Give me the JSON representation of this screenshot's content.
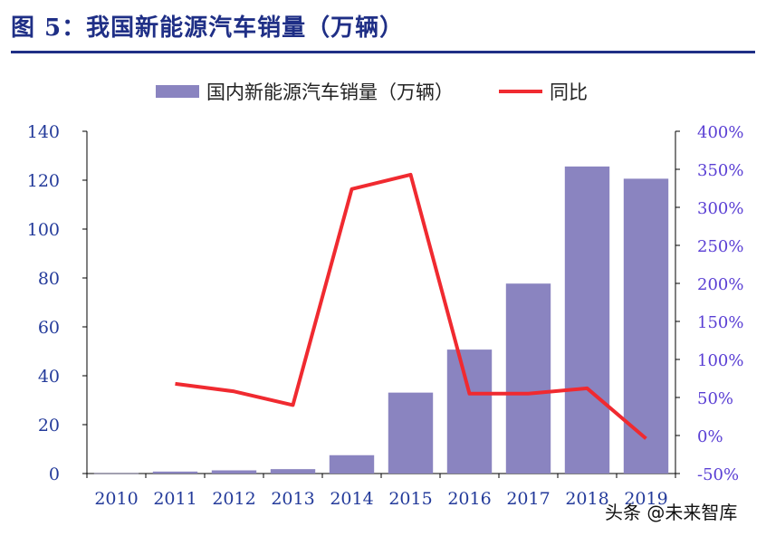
{
  "header": {
    "title": "图 5：我国新能源汽车销量（万辆）"
  },
  "colors": {
    "title": "#1f2f86",
    "bar": "#8a84c0",
    "line": "#f02a30",
    "left_axis": "#233a9a",
    "right_axis": "#5a3fd4"
  },
  "chart_data": {
    "type": "bar+line",
    "categories": [
      "2010",
      "2011",
      "2012",
      "2013",
      "2014",
      "2015",
      "2016",
      "2017",
      "2018",
      "2019"
    ],
    "series": [
      {
        "name": "国内新能源汽车销量（万辆）",
        "type": "bar",
        "axis": "left",
        "values": [
          0.1,
          0.8,
          1.3,
          1.8,
          7.5,
          33.1,
          50.7,
          77.7,
          125.6,
          120.6
        ]
      },
      {
        "name": "同比",
        "type": "line",
        "axis": "right",
        "values": [
          null,
          68,
          58,
          40,
          324,
          343,
          55,
          55,
          62,
          -4
        ]
      }
    ],
    "y_left": {
      "min": 0,
      "max": 140,
      "ticks": [
        "0",
        "20",
        "40",
        "60",
        "80",
        "100",
        "120",
        "140"
      ]
    },
    "y_right": {
      "min": -50,
      "max": 400,
      "ticks": [
        "-50%",
        "0%",
        "50%",
        "100%",
        "150%",
        "200%",
        "250%",
        "300%",
        "350%",
        "400%"
      ]
    },
    "x_ticks": [
      "2010",
      "2011",
      "2012",
      "2013",
      "2014",
      "2015",
      "2016",
      "2017",
      "2018",
      "2019"
    ],
    "legend_position": "top"
  },
  "watermark": {
    "text": "头条 @未来智库"
  }
}
